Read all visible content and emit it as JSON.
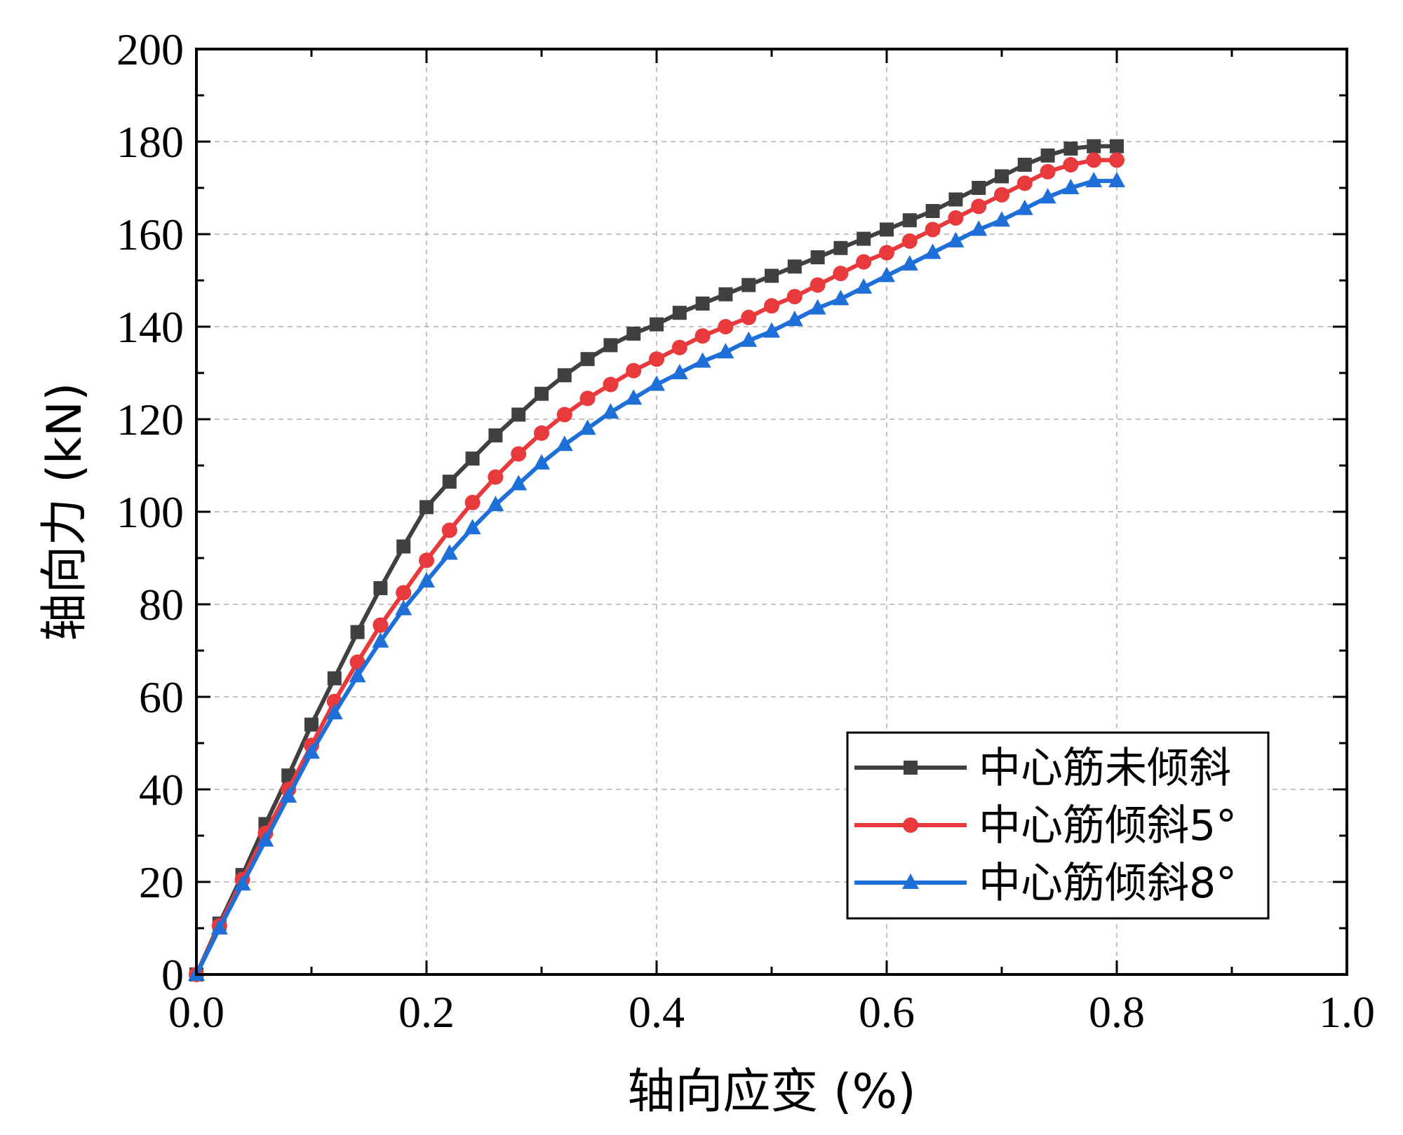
{
  "chart_data": {
    "type": "line",
    "title": "",
    "xlabel": "轴向应变 (%)",
    "ylabel": "轴向力 (kN)",
    "xlim": [
      0.0,
      1.0
    ],
    "ylim": [
      0,
      200
    ],
    "xticks": [
      0.0,
      0.2,
      0.4,
      0.6,
      0.8,
      1.0
    ],
    "xtick_labels": [
      "0.0",
      "0.2",
      "0.4",
      "0.6",
      "0.8",
      "1.0"
    ],
    "yticks": [
      0,
      20,
      40,
      60,
      80,
      100,
      120,
      140,
      160,
      180,
      200
    ],
    "ytick_labels": [
      "0",
      "20",
      "40",
      "60",
      "80",
      "100",
      "120",
      "140",
      "160",
      "180",
      "200"
    ],
    "grid": true,
    "legend_position": "bottom-right",
    "x": [
      0.0,
      0.02,
      0.04,
      0.06,
      0.08,
      0.1,
      0.12,
      0.14,
      0.16,
      0.18,
      0.2,
      0.22,
      0.24,
      0.26,
      0.28,
      0.3,
      0.32,
      0.34,
      0.36,
      0.38,
      0.4,
      0.42,
      0.44,
      0.46,
      0.48,
      0.5,
      0.52,
      0.54,
      0.56,
      0.58,
      0.6,
      0.62,
      0.64,
      0.66,
      0.68,
      0.7,
      0.72,
      0.74,
      0.76,
      0.78,
      0.8
    ],
    "series": [
      {
        "name": "中心筋未倾斜",
        "color": "#404040",
        "marker": "square",
        "values": [
          0,
          11,
          21.5,
          32.5,
          43,
          54,
          64,
          74,
          83.5,
          92.5,
          101,
          106.5,
          111.5,
          116.5,
          121,
          125.5,
          129.5,
          133,
          136,
          138.5,
          140.5,
          143,
          145,
          147,
          149,
          151,
          153,
          155,
          157,
          159,
          161,
          163,
          165,
          167.5,
          170,
          172.5,
          175,
          177,
          178.5,
          179,
          179
        ]
      },
      {
        "name": "中心筋倾斜5°",
        "color": "#e8393c",
        "marker": "circle",
        "values": [
          0,
          10.5,
          20.5,
          30.5,
          40,
          49.5,
          59,
          67.5,
          75.5,
          82.5,
          89.5,
          96,
          102,
          107.5,
          112.5,
          117,
          121,
          124.5,
          127.5,
          130.5,
          133,
          135.5,
          138,
          140,
          142,
          144.5,
          146.5,
          149,
          151.5,
          154,
          156,
          158.5,
          161,
          163.5,
          166,
          168.5,
          171,
          173.5,
          175,
          176,
          176
        ]
      },
      {
        "name": "中心筋倾斜8°",
        "color": "#1f6fd9",
        "marker": "triangle",
        "values": [
          0,
          10,
          19.5,
          29,
          38.5,
          48,
          56.5,
          64.5,
          72,
          79,
          85,
          91,
          96.5,
          101.5,
          106,
          110.5,
          114.5,
          118,
          121.5,
          124.5,
          127.5,
          130,
          132.5,
          134.5,
          137,
          139,
          141.5,
          144,
          146,
          148.5,
          151,
          153.5,
          156,
          158.5,
          161,
          163,
          165.5,
          168,
          170,
          171.5,
          171.5
        ]
      }
    ]
  }
}
